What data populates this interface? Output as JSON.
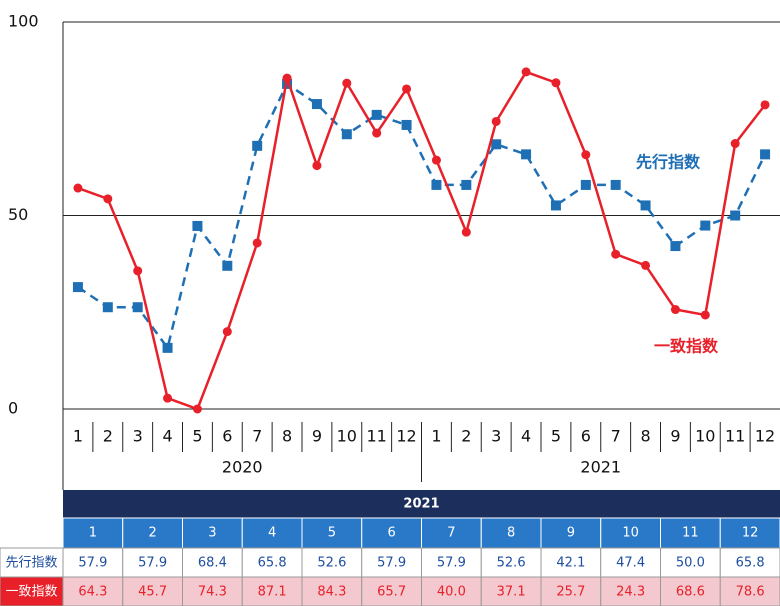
{
  "chart_data": {
    "type": "line",
    "groups": [
      {
        "name": "2020",
        "categories": [
          "1",
          "2",
          "3",
          "4",
          "5",
          "6",
          "7",
          "8",
          "9",
          "10",
          "11",
          "12"
        ]
      },
      {
        "name": "2021",
        "categories": [
          "1",
          "2",
          "3",
          "4",
          "5",
          "6",
          "7",
          "8",
          "9",
          "10",
          "11",
          "12"
        ]
      }
    ],
    "series": [
      {
        "name": "先行指数",
        "color": "#1f6fb5",
        "dashed": true,
        "marker": "square",
        "values": [
          31.5,
          26.3,
          26.3,
          15.8,
          47.3,
          37.0,
          68.0,
          84.0,
          78.8,
          71.0,
          76.0,
          73.4,
          57.9,
          57.9,
          68.4,
          65.8,
          52.6,
          57.9,
          57.9,
          52.6,
          42.1,
          47.4,
          50.0,
          65.8
        ]
      },
      {
        "name": "一致指数",
        "color": "#e8202a",
        "dashed": false,
        "marker": "circle",
        "values": [
          57.1,
          54.3,
          35.7,
          2.8,
          0,
          20.0,
          42.9,
          85.5,
          62.9,
          84.2,
          71.3,
          82.7,
          64.3,
          45.7,
          74.3,
          87.1,
          84.3,
          65.7,
          40.0,
          37.1,
          25.7,
          24.3,
          68.6,
          78.6
        ]
      }
    ],
    "ylim": [
      0,
      100
    ],
    "yticks": [
      0,
      50,
      100
    ]
  },
  "table": {
    "header": "2021",
    "columns": [
      "1",
      "2",
      "3",
      "4",
      "5",
      "6",
      "7",
      "8",
      "9",
      "10",
      "11",
      "12"
    ],
    "rows": [
      {
        "label": "先行指数",
        "cells": [
          "57.9",
          "57.9",
          "68.4",
          "65.8",
          "52.6",
          "57.9",
          "57.9",
          "52.6",
          "42.1",
          "47.4",
          "50.0",
          "65.8"
        ]
      },
      {
        "label": "一致指数",
        "cells": [
          "64.3",
          "45.7",
          "74.3",
          "87.1",
          "84.3",
          "65.7",
          "40.0",
          "37.1",
          "25.7",
          "24.3",
          "68.6",
          "78.6"
        ]
      }
    ]
  }
}
